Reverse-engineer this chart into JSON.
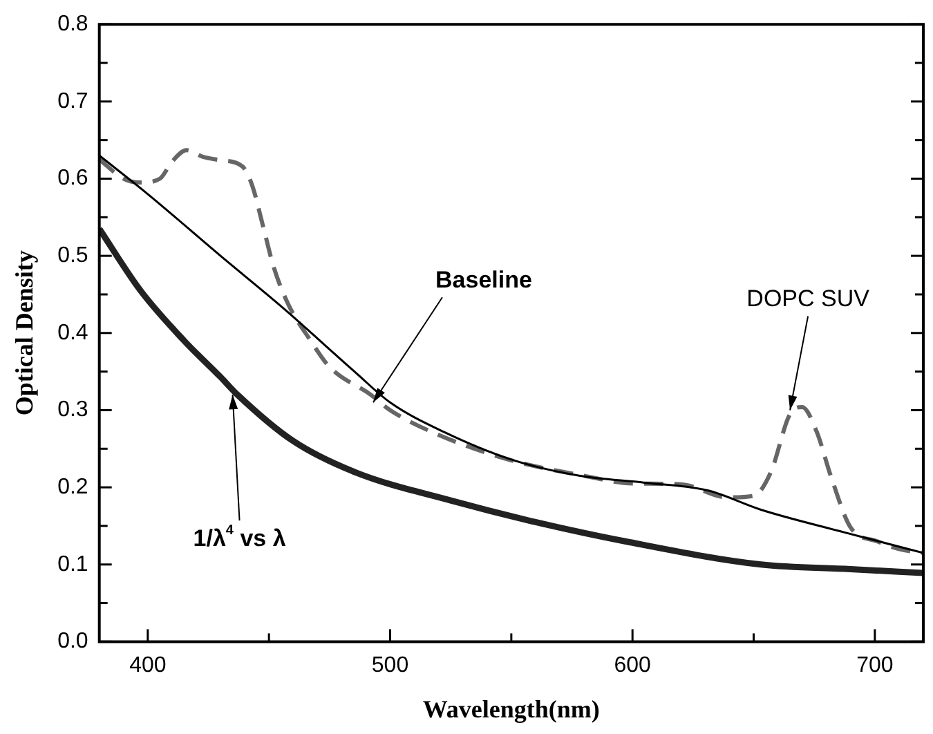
{
  "chart_data": {
    "type": "line",
    "xlabel": "Wavelength(nm)",
    "ylabel": "Optical Density",
    "xlim": [
      380,
      720
    ],
    "ylim": [
      0,
      0.8
    ],
    "xticks": [
      400,
      {
        "value": 450,
        "label": null
      },
      500,
      {
        "value": 550,
        "label": null
      },
      600,
      {
        "value": 650,
        "label": null
      },
      700
    ],
    "yticks": [
      {
        "value": 0,
        "label": "0.0"
      },
      {
        "value": 0.05,
        "label": null
      },
      0.1,
      {
        "value": 0.15,
        "label": null
      },
      0.2,
      {
        "value": 0.25,
        "label": null
      },
      0.3,
      {
        "value": 0.35,
        "label": null
      },
      0.4,
      {
        "value": 0.45,
        "label": null
      },
      0.5,
      {
        "value": 0.55,
        "label": null
      },
      0.6,
      {
        "value": 0.65,
        "label": null
      },
      0.7,
      {
        "value": 0.75,
        "label": null
      },
      0.8
    ],
    "grid": false,
    "legend": false,
    "marker": "none",
    "series": [
      {
        "color": "#000000",
        "line_style": "solid",
        "x": [
          380,
          400,
          430,
          456,
          486,
          500,
          522,
          550,
          578,
          605,
          631,
          653,
          687,
          720
        ],
        "values": [
          0.63,
          0.58,
          0.5,
          0.432,
          0.348,
          0.31,
          0.272,
          0.236,
          0.215,
          0.206,
          0.196,
          0.171,
          0.142,
          0.115
        ]
      },
      {
        "color": "#666666",
        "line_style": "dashed",
        "x": [
          380,
          390,
          397,
          405,
          410,
          416,
          423,
          430,
          439,
          443,
          448,
          452,
          458,
          467,
          475,
          492,
          500,
          520,
          550,
          580,
          600,
          620,
          639,
          650,
          657,
          665,
          670,
          676,
          682,
          690,
          701,
          710,
          720
        ],
        "values": [
          0.625,
          0.6,
          0.595,
          0.6,
          0.622,
          0.637,
          0.628,
          0.624,
          0.616,
          0.592,
          0.533,
          0.485,
          0.437,
          0.391,
          0.356,
          0.32,
          0.3,
          0.268,
          0.235,
          0.215,
          0.205,
          0.204,
          0.187,
          0.189,
          0.219,
          0.295,
          0.304,
          0.272,
          0.213,
          0.148,
          0.13,
          0.12,
          0.115
        ]
      },
      {
        "color": "#222222",
        "line_style": "solid",
        "x": [
          380,
          397,
          415,
          430,
          437,
          460,
          486,
          525,
          560,
          597,
          653,
          690,
          720
        ],
        "values": [
          0.535,
          0.455,
          0.39,
          0.343,
          0.32,
          0.26,
          0.219,
          0.183,
          0.155,
          0.13,
          0.1,
          0.094,
          0.089
        ]
      }
    ],
    "annotations": [
      {
        "text": "Baseline",
        "x": 493,
        "y": 0.31
      },
      {
        "text": "DOPC SUV",
        "x": 665,
        "y": 0.3
      },
      {
        "text": "1/λ$^{4}$ vs λ",
        "x": 435,
        "y": 0.32
      }
    ]
  }
}
